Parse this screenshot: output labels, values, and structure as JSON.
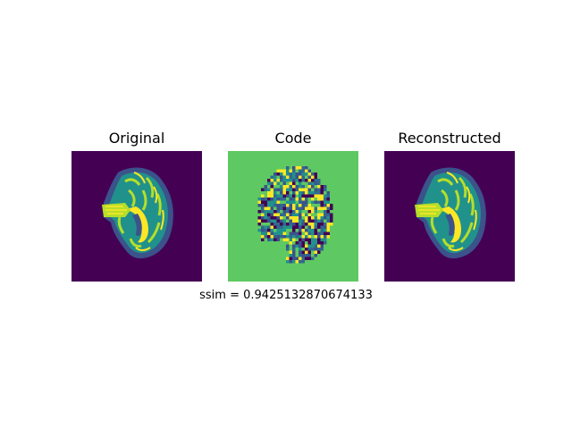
{
  "panels": [
    {
      "title": "Original",
      "background": "#440154"
    },
    {
      "title": "Code",
      "background": "#5ec962"
    },
    {
      "title": "Reconstructed",
      "background": "#440154"
    }
  ],
  "caption": "ssim = 0.9425132870674133",
  "colors": {
    "viridis_dark": "#440154",
    "viridis_blue": "#31688e",
    "viridis_teal": "#21918c",
    "viridis_green": "#5ec962",
    "viridis_yellow": "#fde725"
  }
}
